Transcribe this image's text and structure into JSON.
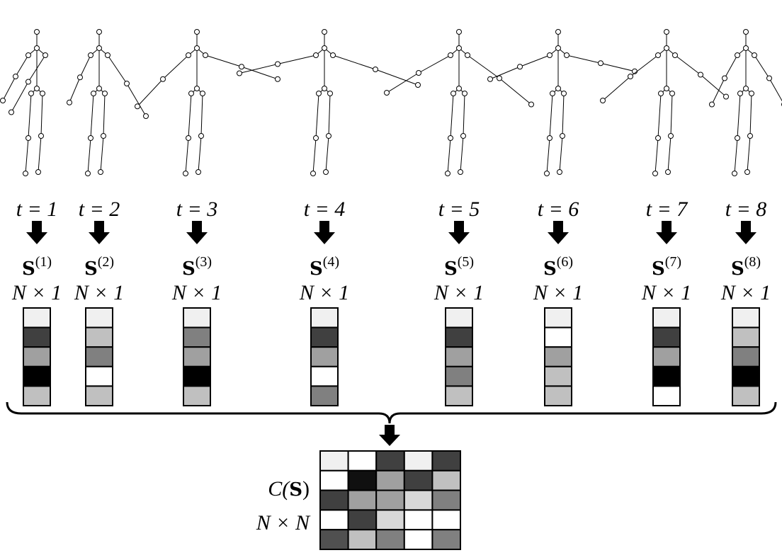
{
  "columns": [
    {
      "time": "t = 1",
      "symbol": "S",
      "index": "(1)",
      "size": "N × 1",
      "cells": [
        "#f0f0f0",
        "#404040",
        "#a0a0a0",
        "#000000",
        "#c0c0c0"
      ]
    },
    {
      "time": "t = 2",
      "symbol": "S",
      "index": "(2)",
      "size": "N × 1",
      "cells": [
        "#f0f0f0",
        "#c0c0c0",
        "#808080",
        "#ffffff",
        "#c0c0c0"
      ]
    },
    {
      "time": "t = 3",
      "symbol": "S",
      "index": "(3)",
      "size": "N × 1",
      "cells": [
        "#f0f0f0",
        "#808080",
        "#a0a0a0",
        "#000000",
        "#c0c0c0"
      ]
    },
    {
      "time": "t = 4",
      "symbol": "S",
      "index": "(4)",
      "size": "N × 1",
      "cells": [
        "#f0f0f0",
        "#404040",
        "#a0a0a0",
        "#ffffff",
        "#808080"
      ]
    },
    {
      "time": "t = 5",
      "symbol": "S",
      "index": "(5)",
      "size": "N × 1",
      "cells": [
        "#f0f0f0",
        "#404040",
        "#a0a0a0",
        "#808080",
        "#c0c0c0"
      ]
    },
    {
      "time": "t = 6",
      "symbol": "S",
      "index": "(6)",
      "size": "N × 1",
      "cells": [
        "#f0f0f0",
        "#ffffff",
        "#a0a0a0",
        "#c0c0c0",
        "#c0c0c0"
      ]
    },
    {
      "time": "t = 7",
      "symbol": "S",
      "index": "(7)",
      "size": "N × 1",
      "cells": [
        "#f0f0f0",
        "#404040",
        "#a0a0a0",
        "#000000",
        "#ffffff"
      ]
    },
    {
      "time": "t = 8",
      "symbol": "S",
      "index": "(8)",
      "size": "N × 1",
      "cells": [
        "#f0f0f0",
        "#c0c0c0",
        "#808080",
        "#000000",
        "#c0c0c0"
      ]
    }
  ],
  "matrix": {
    "label_function": "C(",
    "label_symbol": "S",
    "label_close": ")",
    "size": "N × N",
    "cells": [
      [
        "#f0f0f0",
        "#ffffff",
        "#404040",
        "#f0f0f0",
        "#404040"
      ],
      [
        "#ffffff",
        "#101010",
        "#a0a0a0",
        "#404040",
        "#c0c0c0"
      ],
      [
        "#404040",
        "#a0a0a0",
        "#a0a0a0",
        "#d8d8d8",
        "#808080"
      ],
      [
        "#ffffff",
        "#404040",
        "#d8d8d8",
        "#ffffff",
        "#ffffff"
      ],
      [
        "#505050",
        "#c0c0c0",
        "#808080",
        "#ffffff",
        "#808080"
      ]
    ]
  }
}
